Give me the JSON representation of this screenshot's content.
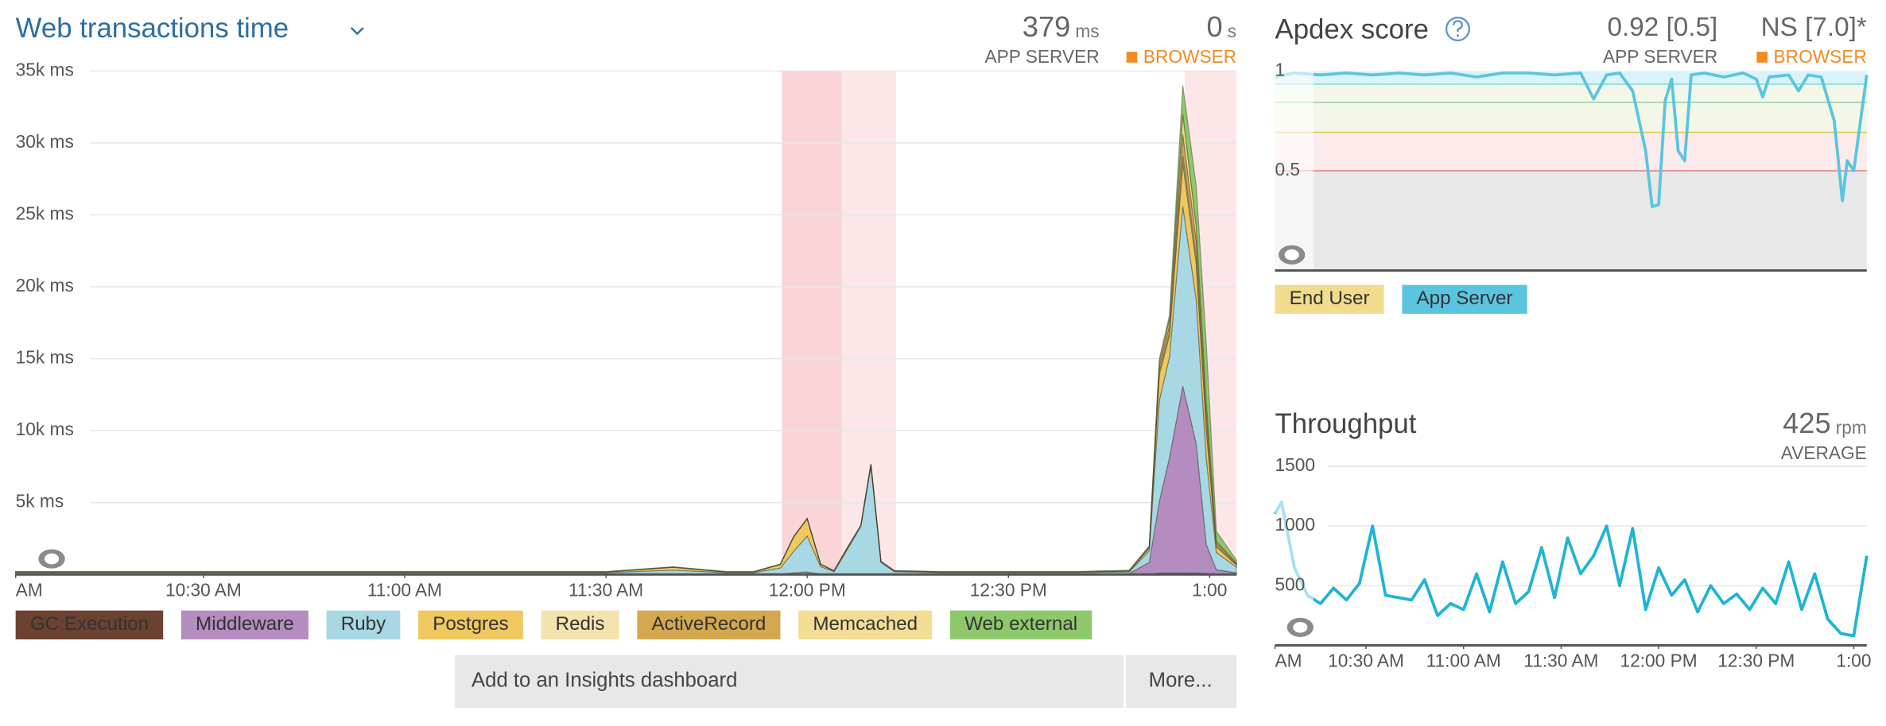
{
  "chart_data": [
    {
      "type": "area",
      "stacked": true,
      "title": "Web transactions time",
      "summary": [
        {
          "value": 379,
          "unit": "ms",
          "label": "APP SERVER"
        },
        {
          "value": 0,
          "unit": "s",
          "label": "BROWSER",
          "color": "#f28a1e"
        }
      ],
      "x": [
        2,
        10,
        20,
        30,
        40,
        50,
        60,
        70,
        80,
        90,
        100,
        108,
        112,
        116,
        118,
        120,
        122,
        124,
        126,
        128,
        129.5,
        131,
        133,
        140,
        150,
        160,
        168,
        171,
        172.5,
        174,
        176,
        178,
        179.5,
        181,
        184
      ],
      "xlim": [
        2,
        184
      ],
      "xticks": [
        {
          "value": 0,
          "label": "AM"
        },
        {
          "value": 30,
          "label": "10:30 AM"
        },
        {
          "value": 60,
          "label": "11:00 AM"
        },
        {
          "value": 90,
          "label": "11:30 AM"
        },
        {
          "value": 120,
          "label": "12:00 PM"
        },
        {
          "value": 150,
          "label": "12:30 PM"
        },
        {
          "value": 180,
          "label": "1:00"
        }
      ],
      "ylim": [
        0,
        35000
      ],
      "yticks": [
        {
          "value": 5000,
          "label": "5k ms"
        },
        {
          "value": 10000,
          "label": "10k ms"
        },
        {
          "value": 15000,
          "label": "15k ms"
        },
        {
          "value": 20000,
          "label": "20k ms"
        },
        {
          "value": 25000,
          "label": "25k ms"
        },
        {
          "value": 30000,
          "label": "30k ms"
        },
        {
          "value": 35000,
          "label": "35k ms"
        }
      ],
      "grid": true,
      "series": [
        {
          "name": "GC Execution",
          "color": "#6b4232",
          "values": [
            20,
            20,
            20,
            20,
            20,
            20,
            20,
            20,
            20,
            20,
            20,
            20,
            20,
            20,
            20,
            20,
            20,
            20,
            20,
            20,
            20,
            20,
            20,
            20,
            20,
            20,
            20,
            50,
            100,
            100,
            100,
            100,
            80,
            30,
            10
          ]
        },
        {
          "name": "Middleware",
          "color": "#b48cc0",
          "values": [
            30,
            30,
            30,
            30,
            30,
            30,
            30,
            30,
            30,
            30,
            30,
            30,
            30,
            30,
            100,
            150,
            30,
            30,
            30,
            30,
            30,
            30,
            30,
            30,
            30,
            30,
            40,
            800,
            5000,
            8000,
            13000,
            9000,
            2000,
            300,
            100
          ]
        },
        {
          "name": "Ruby",
          "color": "#a8d8e4",
          "values": [
            80,
            80,
            80,
            80,
            80,
            80,
            80,
            80,
            80,
            80,
            250,
            80,
            80,
            400,
            1500,
            2500,
            500,
            150,
            1700,
            3300,
            7500,
            800,
            150,
            80,
            80,
            80,
            120,
            800,
            7000,
            7000,
            12500,
            10000,
            6000,
            1200,
            400
          ]
        },
        {
          "name": "Postgres",
          "color": "#f0c860",
          "values": [
            40,
            40,
            40,
            40,
            40,
            40,
            40,
            40,
            40,
            40,
            200,
            40,
            40,
            250,
            1000,
            1200,
            150,
            40,
            100,
            40,
            100,
            40,
            40,
            40,
            40,
            40,
            60,
            200,
            1800,
            1500,
            3000,
            2500,
            2000,
            400,
            150
          ]
        },
        {
          "name": "Redis",
          "color": "#f5e3ae",
          "values": [
            5,
            5,
            5,
            5,
            5,
            5,
            5,
            5,
            5,
            5,
            5,
            5,
            5,
            5,
            5,
            5,
            5,
            5,
            5,
            5,
            5,
            5,
            5,
            5,
            5,
            5,
            5,
            20,
            200,
            200,
            500,
            400,
            300,
            50,
            20
          ]
        },
        {
          "name": "ActiveRecord",
          "color": "#d4a84f",
          "values": [
            10,
            10,
            10,
            10,
            10,
            10,
            10,
            10,
            10,
            10,
            10,
            10,
            10,
            10,
            10,
            10,
            10,
            10,
            10,
            10,
            10,
            10,
            10,
            10,
            10,
            10,
            20,
            50,
            400,
            500,
            1500,
            1200,
            1000,
            200,
            80
          ]
        },
        {
          "name": "Memcached",
          "color": "#f3dd95",
          "values": [
            5,
            5,
            5,
            5,
            5,
            5,
            5,
            5,
            5,
            5,
            5,
            5,
            5,
            5,
            5,
            5,
            5,
            5,
            5,
            5,
            5,
            5,
            5,
            5,
            5,
            5,
            10,
            30,
            300,
            400,
            1400,
            1000,
            620,
            120,
            40
          ]
        },
        {
          "name": "Web external",
          "color": "#8fc86a",
          "values": [
            10,
            10,
            10,
            10,
            10,
            10,
            10,
            10,
            10,
            10,
            10,
            10,
            10,
            10,
            10,
            10,
            10,
            10,
            10,
            10,
            10,
            10,
            10,
            10,
            10,
            10,
            25,
            50,
            200,
            300,
            2000,
            2800,
            4000,
            700,
            200
          ]
        }
      ]
    },
    {
      "type": "line",
      "title": "Apdex score",
      "summary": [
        {
          "text": "0.92 [0.5]",
          "label": "APP SERVER"
        },
        {
          "text": "NS [7.0]*",
          "label": "BROWSER",
          "color": "#f28a1e"
        }
      ],
      "x": [
        2,
        8,
        16,
        24,
        32,
        40,
        48,
        56,
        64,
        72,
        80,
        88,
        96,
        100,
        104,
        108,
        112,
        116,
        118,
        120,
        122,
        124,
        126,
        128,
        130,
        134,
        140,
        146,
        150,
        152,
        154,
        160,
        163,
        166,
        170,
        174,
        176.5,
        178,
        180,
        184
      ],
      "xlim": [
        2,
        184
      ],
      "ylim": [
        0,
        1
      ],
      "yticks": [
        0.5,
        1
      ],
      "grid": false,
      "series": [
        {
          "name": "End User",
          "color": "#f0dc8c",
          "values": [
            null,
            null,
            null,
            null,
            null,
            null,
            null,
            null,
            null,
            null,
            null,
            null,
            null,
            null,
            null,
            null,
            null,
            null,
            null,
            null,
            null,
            null,
            null,
            null,
            null,
            null,
            null,
            null,
            null,
            null,
            null,
            null,
            null,
            null,
            null,
            null,
            null,
            null,
            null,
            null
          ]
        },
        {
          "name": "App Server",
          "color": "#5bc5e0",
          "values": [
            0.97,
            0.99,
            0.98,
            0.99,
            0.98,
            0.99,
            0.98,
            0.99,
            0.97,
            0.99,
            0.99,
            0.98,
            0.99,
            0.86,
            0.98,
            0.99,
            0.9,
            0.6,
            0.32,
            0.33,
            0.85,
            0.96,
            0.6,
            0.55,
            0.98,
            0.99,
            0.97,
            0.99,
            0.96,
            0.87,
            0.97,
            0.98,
            0.9,
            0.98,
            0.97,
            0.75,
            0.35,
            0.55,
            0.5,
            0.98
          ]
        }
      ]
    },
    {
      "type": "line",
      "title": "Throughput",
      "summary": [
        {
          "value": 425,
          "unit": "rpm",
          "label": "AVERAGE"
        }
      ],
      "x": [
        2,
        4,
        8,
        12,
        16,
        20,
        24,
        28,
        32,
        36,
        40,
        44,
        48,
        52,
        56,
        60,
        64,
        68,
        72,
        76,
        80,
        84,
        88,
        92,
        96,
        100,
        104,
        108,
        112,
        116,
        120,
        124,
        128,
        132,
        136,
        140,
        144,
        148,
        152,
        156,
        160,
        164,
        168,
        172,
        176,
        180,
        184
      ],
      "xlim": [
        2,
        184
      ],
      "xticks": [
        {
          "value": 0,
          "label": "AM"
        },
        {
          "value": 30,
          "label": "10:30 AM"
        },
        {
          "value": 60,
          "label": "11:00 AM"
        },
        {
          "value": 90,
          "label": "11:30 AM"
        },
        {
          "value": 120,
          "label": "12:00 PM"
        },
        {
          "value": 150,
          "label": "12:30 PM"
        },
        {
          "value": 180,
          "label": "1:00"
        }
      ],
      "ylim": [
        0,
        1500
      ],
      "yticks": [
        500,
        1000,
        1500
      ],
      "grid": true,
      "color": "#1fb3d6",
      "values": [
        1100,
        1200,
        650,
        420,
        350,
        480,
        380,
        520,
        1000,
        420,
        400,
        380,
        550,
        250,
        350,
        300,
        600,
        280,
        700,
        350,
        450,
        820,
        400,
        900,
        600,
        750,
        1000,
        500,
        980,
        300,
        650,
        420,
        550,
        280,
        500,
        350,
        430,
        300,
        480,
        350,
        700,
        300,
        600,
        220,
        100,
        80,
        750
      ]
    }
  ],
  "actions": {
    "add": "Add to an Insights dashboard",
    "more": "More..."
  }
}
